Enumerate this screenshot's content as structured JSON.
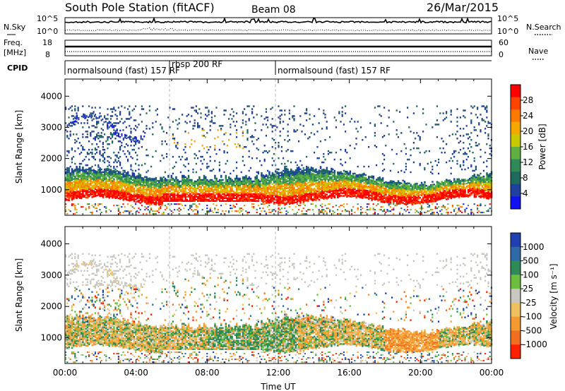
{
  "header": {
    "station": "South Pole Station (fitACF)",
    "beam": "Beam 08",
    "date": "26/Mar/2015"
  },
  "panels": {
    "nsky": {
      "left_label": "N.Sky",
      "left_ticks": [
        "10^5",
        "10^0"
      ],
      "right_ticks": [
        "10^5",
        "10^0"
      ],
      "right_label": "N.Search"
    },
    "freq": {
      "left_label_1": "Freq.",
      "left_label_2": "[MHz]",
      "left_ticks": [
        "18",
        "8"
      ],
      "right_ticks": [
        "60",
        "0"
      ],
      "right_label": "Nave"
    },
    "cpid": {
      "label": "CPID",
      "segments": [
        {
          "text": "normalsound (fast) 157 RF",
          "start": 0,
          "end": 6
        },
        {
          "text": "rbsp 200 RF",
          "start": 6,
          "end": 12
        },
        {
          "text": "normalsound (fast) 157 RF",
          "start": 12,
          "end": 24
        }
      ]
    }
  },
  "chart_data": [
    {
      "type": "heatmap",
      "title": "",
      "parameter": "Power",
      "xlabel": "",
      "ylabel": "Slant Range [km]",
      "xlim": [
        0,
        24
      ],
      "ylim": [
        180,
        4550
      ],
      "y_ticks": [
        1000,
        2000,
        3000,
        4000
      ],
      "colorbar": {
        "label": "Power [dB]",
        "ticks": [
          "28",
          "24",
          "20",
          "16",
          "12",
          "8",
          "4"
        ],
        "colors": [
          "#ff0000",
          "#ff4400",
          "#ff7a00",
          "#f5a800",
          "#c8c800",
          "#5fb040",
          "#2e8b57",
          "#1f6a5f",
          "#1e40a0",
          "#1010f0"
        ]
      },
      "description_bands": [
        {
          "x": [
            0,
            24
          ],
          "y": [
            600,
            1500
          ],
          "dominant": "high"
        },
        {
          "x": [
            0,
            4
          ],
          "y": [
            2800,
            3600
          ],
          "dominant": "low"
        }
      ]
    },
    {
      "type": "heatmap",
      "title": "",
      "parameter": "Velocity",
      "xlabel": "Time UT",
      "ylabel": "Slant Range [km]",
      "xlim": [
        0,
        24
      ],
      "ylim": [
        180,
        4550
      ],
      "y_ticks": [
        1000,
        2000,
        3000,
        4000
      ],
      "x_ticks": [
        "00:00",
        "04:00",
        "08:00",
        "12:00",
        "16:00",
        "20:00",
        "00:00"
      ],
      "colorbar": {
        "label": "Velocity [m s⁻¹]",
        "ticks": [
          "1000",
          "500",
          "100",
          "25",
          "-25",
          "-100",
          "-500",
          "-1000"
        ],
        "colors": [
          "#2040b0",
          "#2f6aa8",
          "#2e8b57",
          "#6dbf40",
          "#c8c8c0",
          "#f0c060",
          "#f59a30",
          "#f07020",
          "#ff2000"
        ]
      }
    }
  ]
}
